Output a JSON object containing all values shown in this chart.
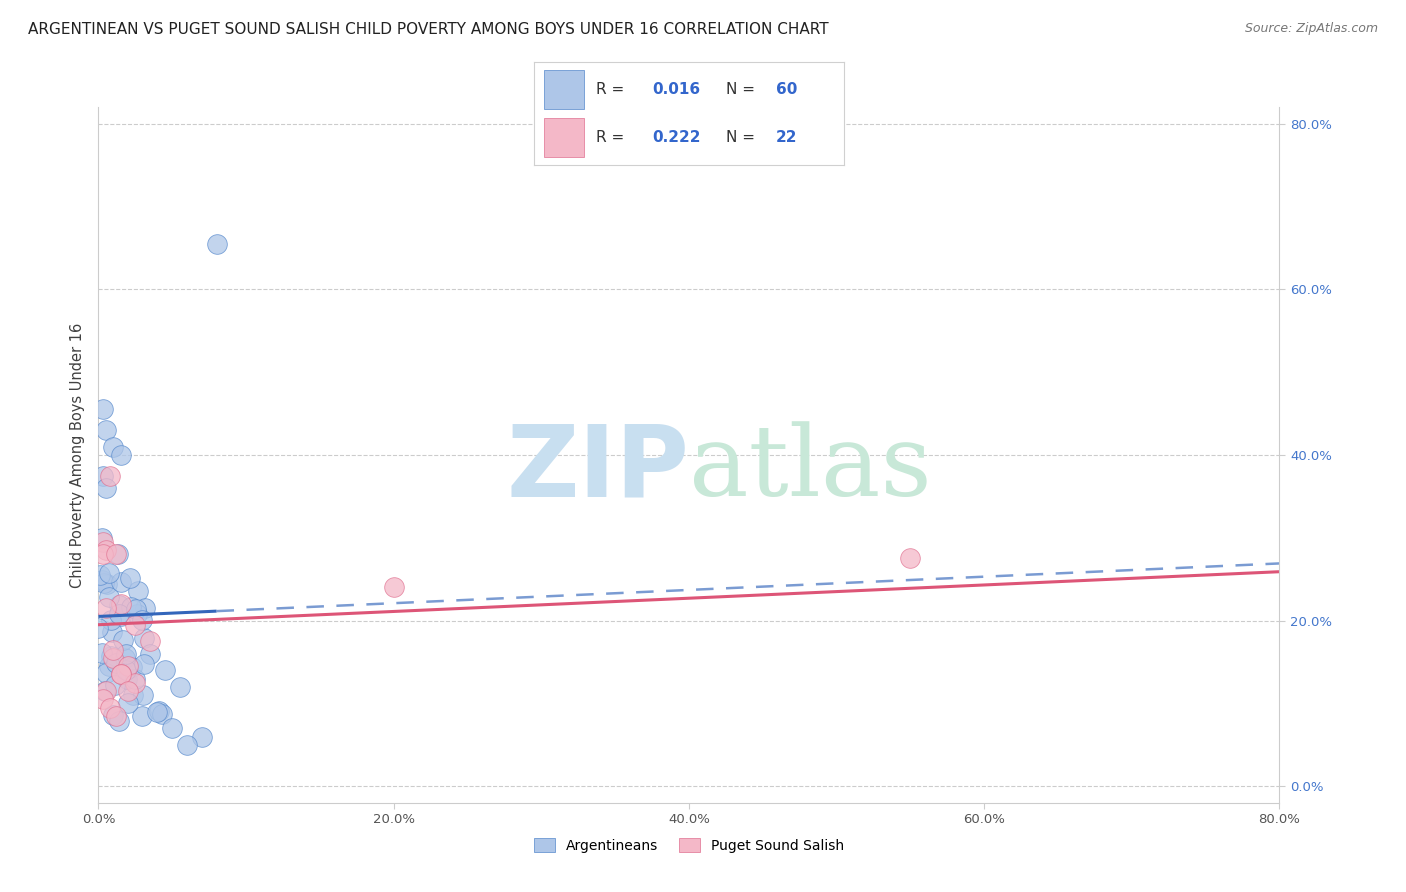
{
  "title": "ARGENTINEAN VS PUGET SOUND SALISH CHILD POVERTY AMONG BOYS UNDER 16 CORRELATION CHART",
  "source": "Source: ZipAtlas.com",
  "ylabel": "Child Poverty Among Boys Under 16",
  "xlim": [
    0.0,
    0.8
  ],
  "ylim": [
    -0.02,
    0.82
  ],
  "blue_R": 0.016,
  "blue_N": 60,
  "pink_R": 0.222,
  "pink_N": 22,
  "blue_color": "#aec6e8",
  "pink_color": "#f4b8c8",
  "blue_edge_color": "#5588cc",
  "pink_edge_color": "#e07090",
  "blue_line_color": "#3366bb",
  "pink_line_color": "#dd5577",
  "watermark_zip_color": "#c8dff0",
  "watermark_atlas_color": "#c8e8d8",
  "background_color": "#ffffff",
  "legend_R_N_color": "#3366cc",
  "legend_label_color": "#333333",
  "right_axis_color": "#4477cc",
  "title_color": "#222222",
  "source_color": "#777777",
  "grid_color": "#cccccc",
  "y_tick_positions": [
    0.0,
    0.2,
    0.4,
    0.6,
    0.8
  ],
  "y_tick_labels": [
    "0.0%",
    "20.0%",
    "40.0%",
    "60.0%",
    "80.0%"
  ],
  "x_tick_positions": [
    0.0,
    0.2,
    0.4,
    0.6,
    0.8
  ],
  "x_tick_labels": [
    "0.0%",
    "20.0%",
    "40.0%",
    "60.0%",
    "80.0%"
  ]
}
